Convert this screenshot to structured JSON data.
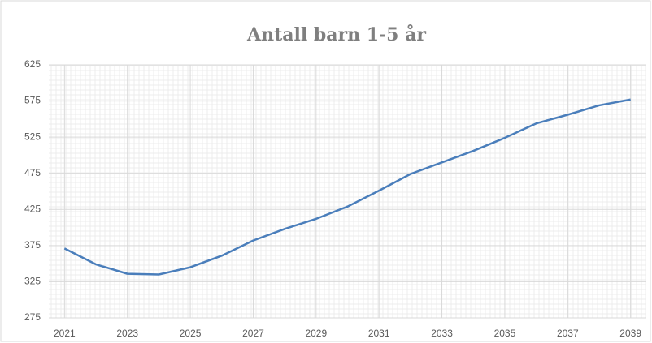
{
  "chart_data": {
    "type": "line",
    "title": "Antall barn 1-5 år",
    "x": [
      2021,
      2022,
      2023,
      2024,
      2025,
      2026,
      2027,
      2028,
      2029,
      2030,
      2031,
      2032,
      2033,
      2034,
      2035,
      2036,
      2037,
      2038,
      2039
    ],
    "series": [
      {
        "name": "Antall barn 1-5 år",
        "color": "#4a7ebb",
        "values": [
          371,
          349,
          336,
          335,
          345,
          361,
          382,
          398,
          412,
          429,
          451,
          474,
          490,
          506,
          524,
          544,
          556,
          569,
          577
        ]
      }
    ],
    "xlim": [
      2020.5,
      2039.5
    ],
    "xticks": [
      2021,
      2023,
      2025,
      2027,
      2029,
      2031,
      2033,
      2035,
      2037,
      2039
    ],
    "ylim": [
      275,
      625
    ],
    "yticks": [
      275,
      325,
      375,
      425,
      475,
      525,
      575,
      625
    ],
    "grid": true
  }
}
